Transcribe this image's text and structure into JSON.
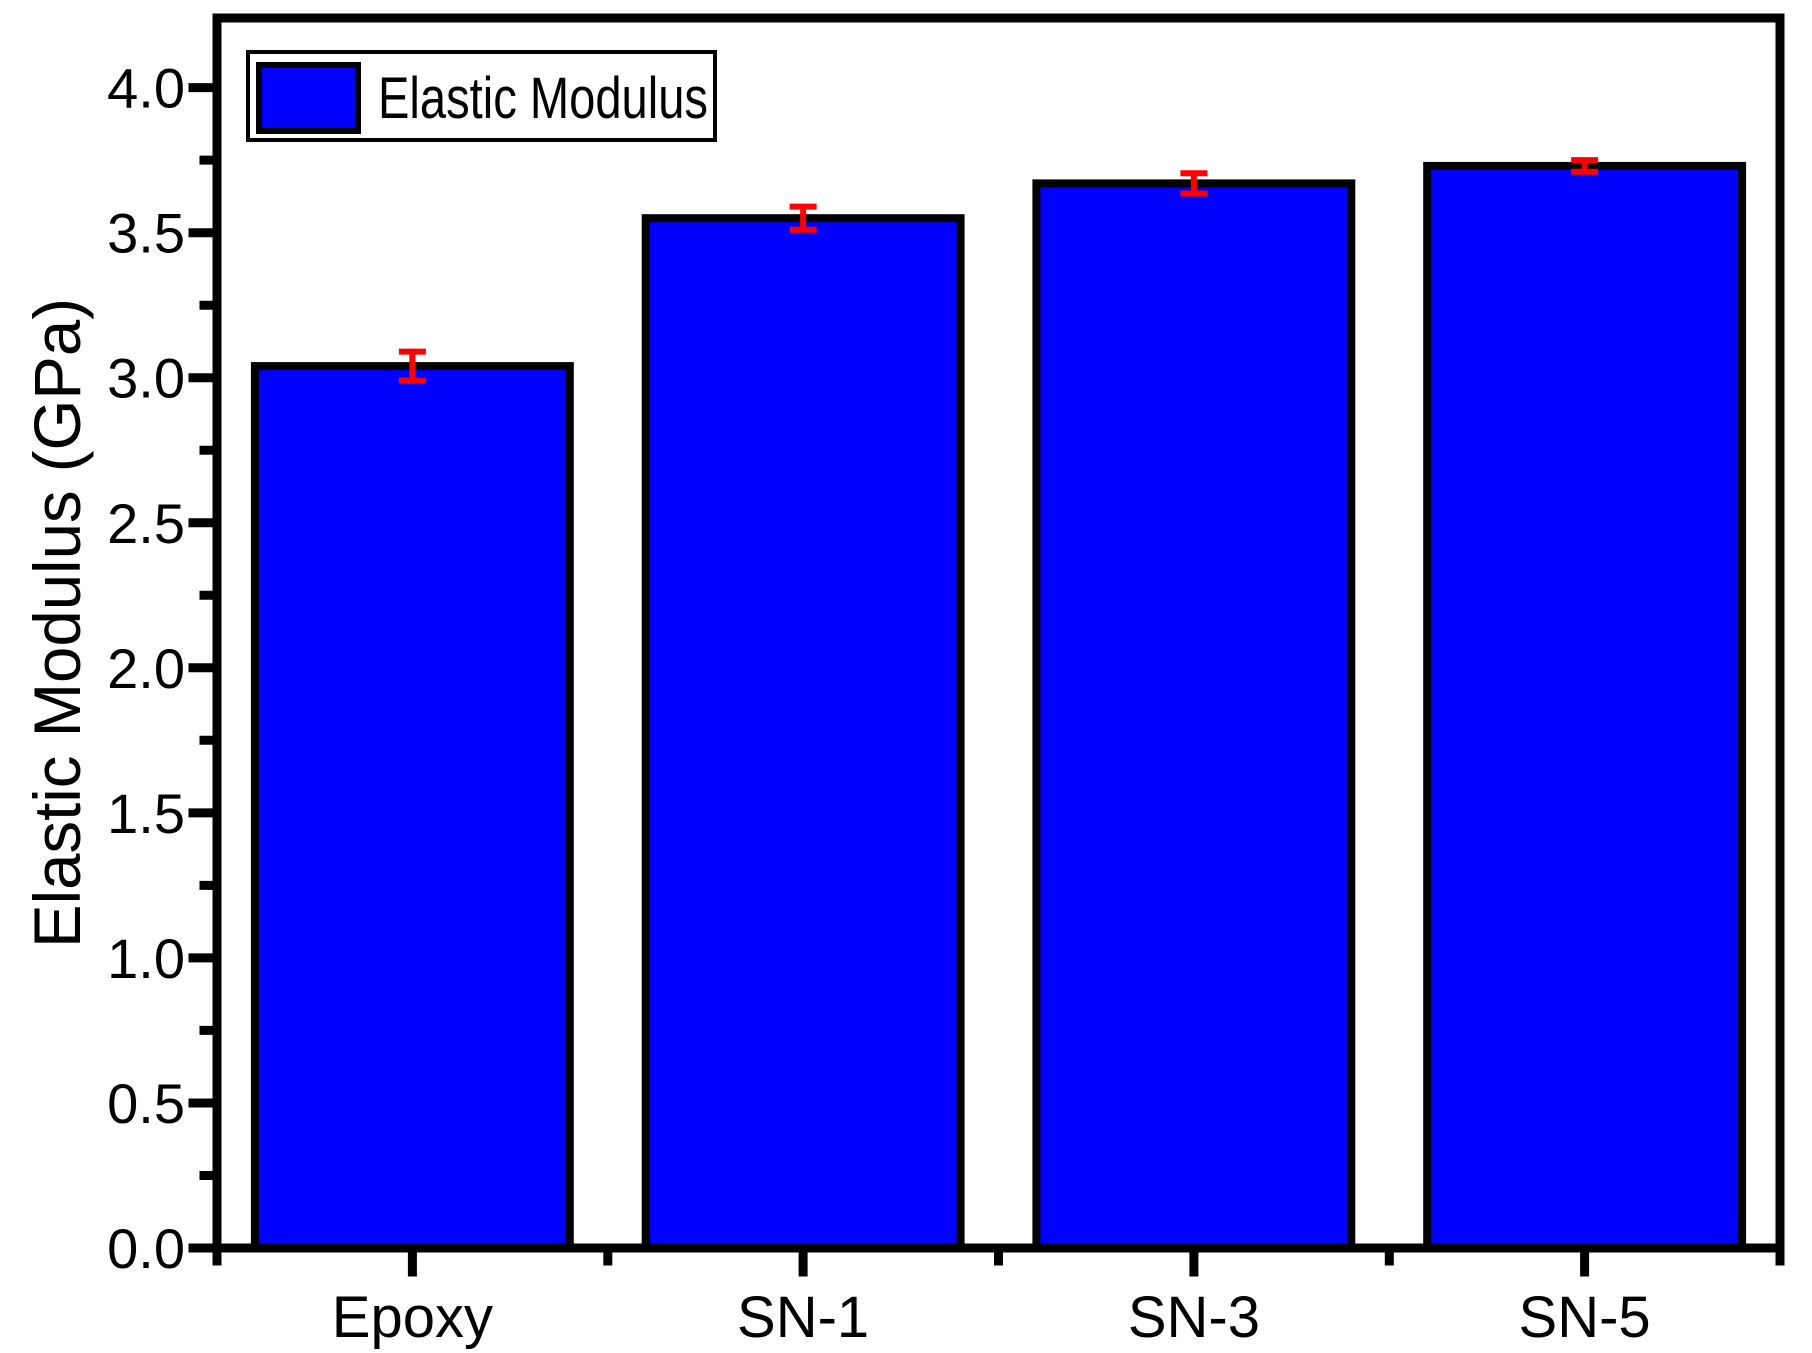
{
  "chart_data": {
    "type": "bar",
    "categories": [
      "Epoxy",
      "SN-1",
      "SN-3",
      "SN-5"
    ],
    "series": [
      {
        "name": "Elastic Modulus",
        "values": [
          3.04,
          3.55,
          3.67,
          3.73
        ],
        "errors": [
          0.05,
          0.04,
          0.035,
          0.02
        ]
      }
    ],
    "title": "",
    "xlabel": "",
    "ylabel": "Elastic Modulus (GPa)",
    "ylim": [
      0,
      4.24
    ],
    "y_major_tick_step": 0.5,
    "y_minor_tick_step": 0.25,
    "y_tick_labels": [
      "0.0",
      "0.5",
      "1.0",
      "1.5",
      "2.0",
      "2.5",
      "3.0",
      "3.5",
      "4.0"
    ],
    "grid": false,
    "legend": {
      "label": "Elastic Modulus",
      "position": "top-left"
    },
    "colors": {
      "bar_fill": "#0000ff",
      "bar_edge": "#000000",
      "error_bar": "#ff0000",
      "axis": "#000000",
      "background": "#ffffff"
    }
  }
}
